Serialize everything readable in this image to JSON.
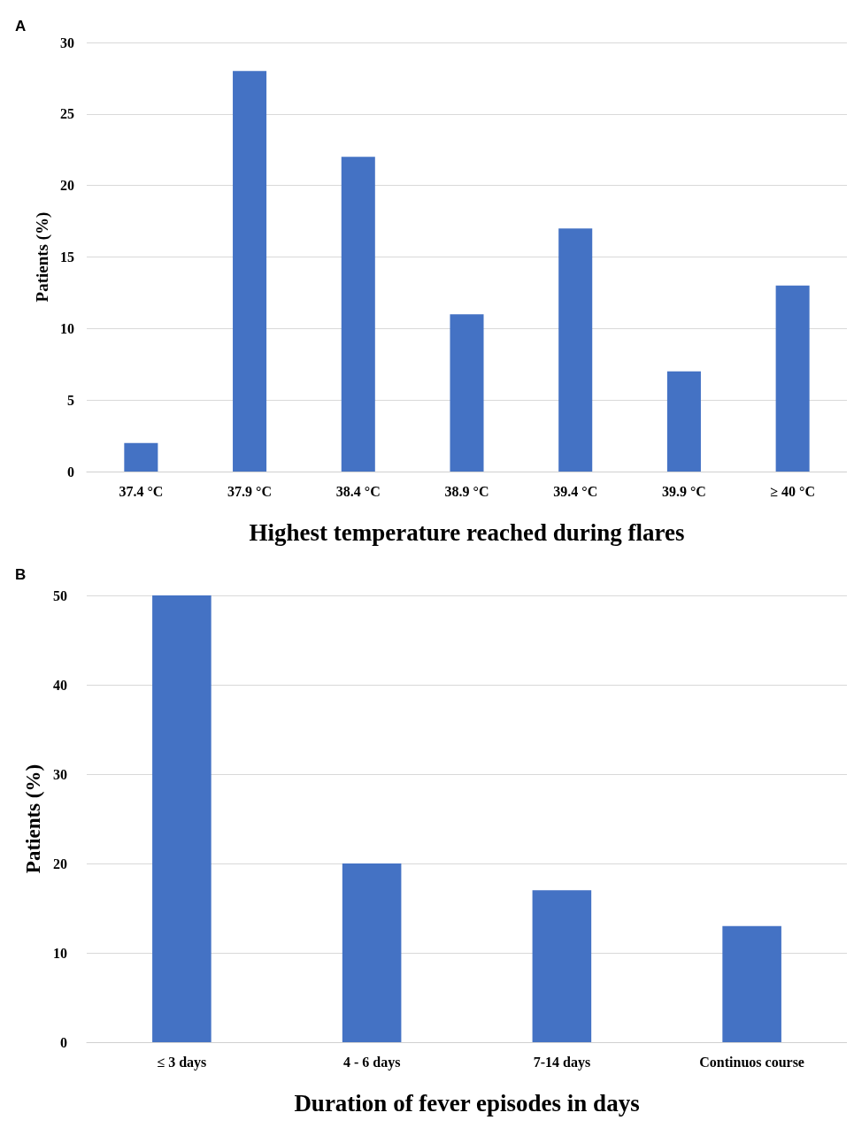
{
  "chart_data": [
    {
      "type": "bar",
      "title": "A",
      "xlabel": "Highest temperature reached during flares",
      "ylabel": "Patients (%)",
      "categories": [
        "37.4 °C",
        "37.9 °C",
        "38.4 °C",
        "38.9 °C",
        "39.4 °C",
        "39.9 °C",
        "≥ 40 °C"
      ],
      "values": [
        2,
        28,
        22,
        11,
        17,
        7,
        13
      ],
      "color": "#4472c4",
      "ylim": [
        0,
        30
      ],
      "yticks": [
        0,
        5,
        10,
        15,
        20,
        25,
        30
      ],
      "grid": "y"
    },
    {
      "type": "bar",
      "title": "B",
      "xlabel": "Duration of fever episodes in days",
      "ylabel": "Patients (%)",
      "categories": [
        "≤ 3 days",
        "4 - 6 days",
        "7-14 days",
        "Continuos course"
      ],
      "values": [
        50,
        20,
        17,
        13
      ],
      "color": "#4472c4",
      "ylim": [
        0,
        50
      ],
      "yticks": [
        0,
        10,
        20,
        30,
        40,
        50
      ],
      "grid": "y"
    }
  ]
}
